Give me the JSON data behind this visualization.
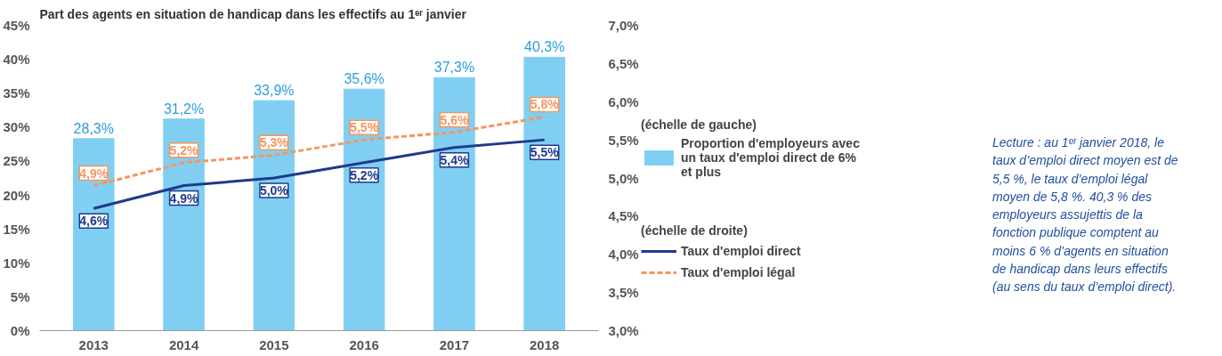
{
  "chart_data": {
    "type": "bar",
    "title": "Part des agents en situation de handicap dans les effectifs au 1ᵉʳ janvier",
    "categories": [
      "2013",
      "2014",
      "2015",
      "2016",
      "2017",
      "2018"
    ],
    "series": [
      {
        "name": "Proportion d'employeurs avec un taux d'emploi direct de 6% et plus",
        "color": "#80cff3",
        "values": [
          28.3,
          31.2,
          33.9,
          35.6,
          37.3,
          40.3
        ],
        "value_labels": [
          "28,3%",
          "31,2%",
          "33,9%",
          "35,6%",
          "37,3%",
          "40,3%"
        ]
      },
      {
        "type": "line",
        "axis": "y2",
        "name": "Taux d'emploi direct",
        "color": "#1e3a8c",
        "line_style": "solid",
        "values": [
          4.6,
          4.9,
          5.0,
          5.2,
          5.4,
          5.5
        ],
        "value_labels": [
          "4,6%",
          "4,9%",
          "5,0%",
          "5,2%",
          "5,4%",
          "5,5%"
        ]
      },
      {
        "type": "line",
        "axis": "y2",
        "name": "Taux d'emploi légal",
        "color": "#f4965f",
        "line_style": "dashed",
        "values": [
          4.9,
          5.2,
          5.3,
          5.5,
          5.6,
          5.8
        ],
        "value_labels": [
          "4,9%",
          "5,2%",
          "5,3%",
          "5,5%",
          "5,6%",
          "5,8%"
        ]
      }
    ],
    "ylim": [
      0,
      45
    ],
    "yticks": [
      {
        "value": 0,
        "label": "0%"
      },
      {
        "value": 5,
        "label": "5%"
      },
      {
        "value": 10,
        "label": "10%"
      },
      {
        "value": 15,
        "label": "15%"
      },
      {
        "value": 20,
        "label": "20%"
      },
      {
        "value": 25,
        "label": "25%"
      },
      {
        "value": 30,
        "label": "30%"
      },
      {
        "value": 35,
        "label": "35%"
      },
      {
        "value": 40,
        "label": "40%"
      },
      {
        "value": 45,
        "label": "45%"
      }
    ],
    "y2lim": [
      3.0,
      7.0
    ],
    "y2ticks": [
      {
        "value": 3.0,
        "label": "3,0%"
      },
      {
        "value": 3.5,
        "label": "3,5%"
      },
      {
        "value": 4.0,
        "label": "4,0%"
      },
      {
        "value": 4.5,
        "label": "4,5%"
      },
      {
        "value": 5.0,
        "label": "5,0%"
      },
      {
        "value": 5.5,
        "label": "5,5%"
      },
      {
        "value": 6.0,
        "label": "6,0%"
      },
      {
        "value": 6.5,
        "label": "6,5%"
      },
      {
        "value": 7.0,
        "label": "7,0%"
      }
    ],
    "grid": false,
    "legend": "right",
    "annotations": [
      "(échelle de gauche)",
      "(échelle de droite)",
      "Lecture : au 1ᵉʳ janvier 2018, le taux d’emploi direct moyen est de 5,5 %, le taux d’emploi légal moyen de 5,8 %. 40,3 % des employeurs assujettis de la fonction publique comptent au moins 6 % d’agents en situation de handicap dans leurs effectifs (au sens du taux d’emploi direct)."
    ]
  }
}
